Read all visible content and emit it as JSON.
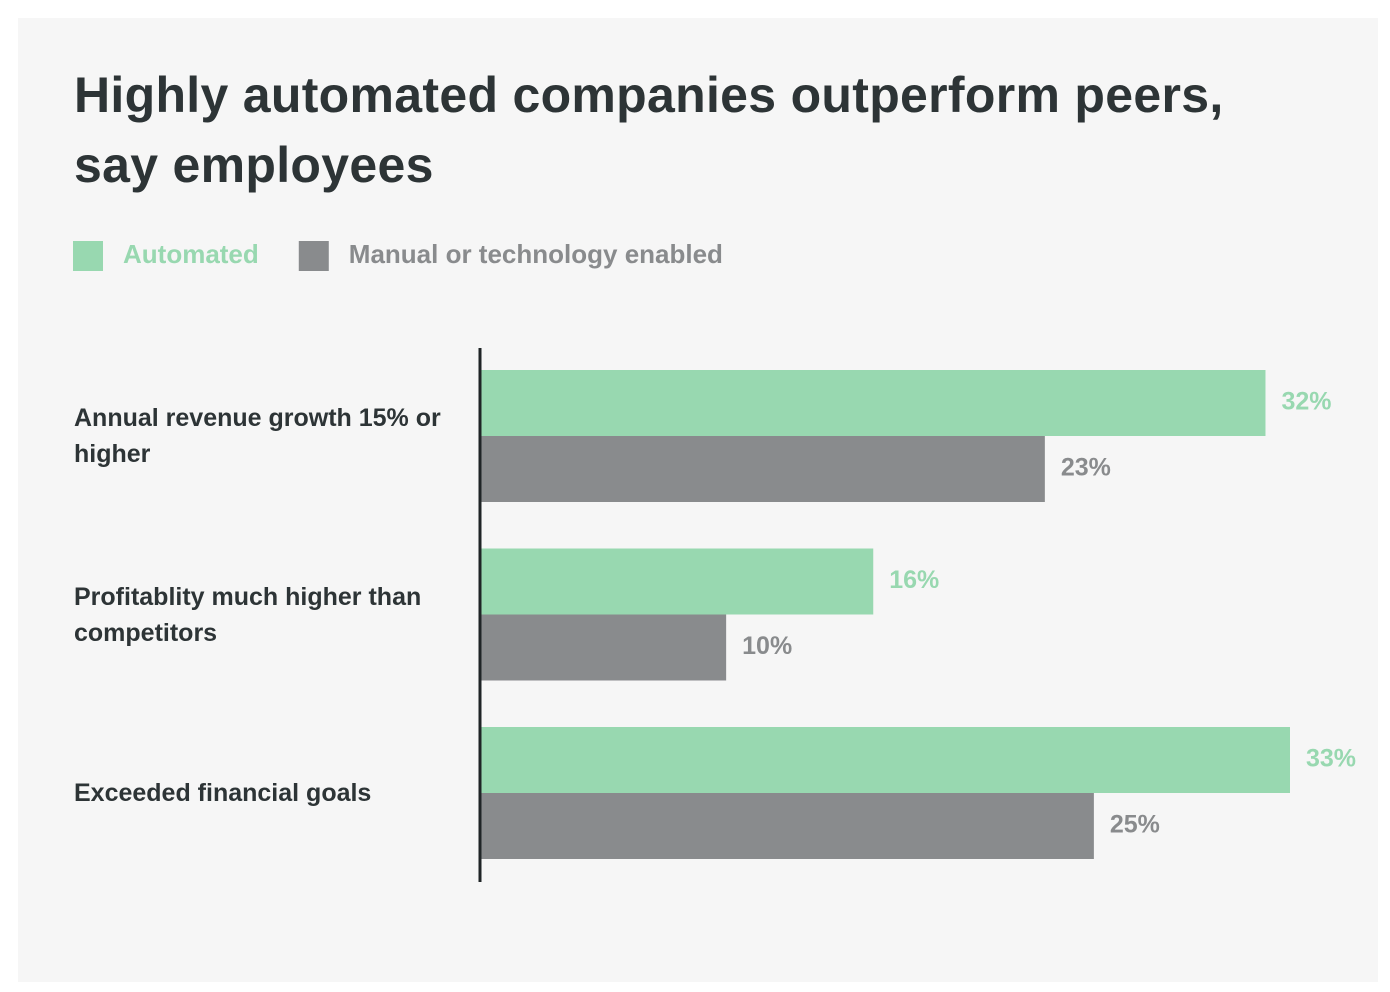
{
  "chart_data": {
    "type": "bar",
    "orientation": "horizontal",
    "title": "Highly automated companies outperform peers, say employees",
    "categories": [
      "Annual revenue growth 15% or higher",
      "Profitablity much higher than competitors",
      "Exceeded financial goals"
    ],
    "series": [
      {
        "name": "Automated",
        "color": "#98d8b0",
        "values": [
          32,
          16,
          33
        ],
        "value_labels": [
          "32%",
          "16%",
          "33%"
        ]
      },
      {
        "name": "Manual or technology enabled",
        "color": "#898b8d",
        "values": [
          23,
          10,
          25
        ],
        "value_labels": [
          "23%",
          "10%",
          "25%"
        ]
      }
    ]
  }
}
